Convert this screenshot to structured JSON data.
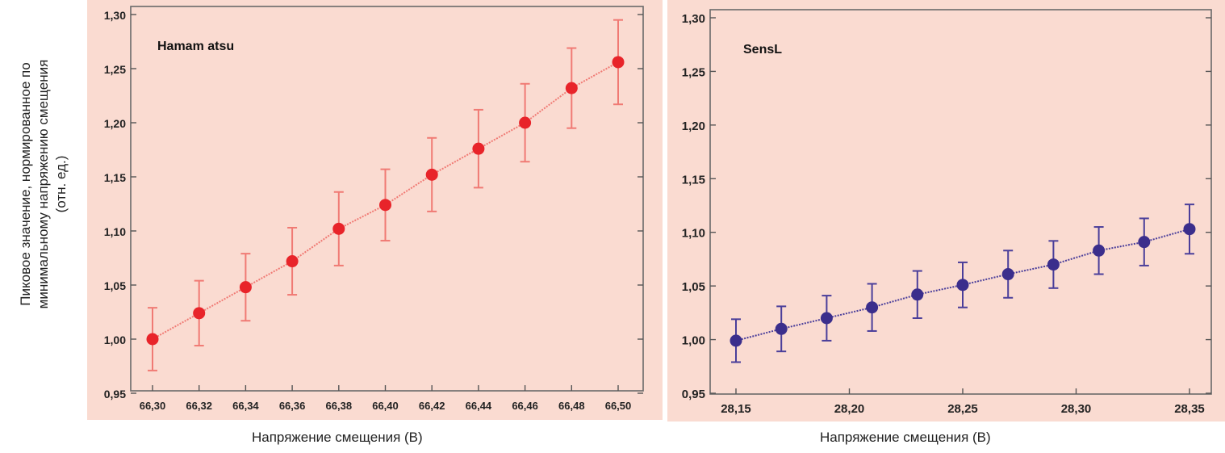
{
  "shared": {
    "ylabel_lines": [
      "Пиковое значение, нормированное по",
      "минимальному напряжению смещения",
      "(отн. ед.)"
    ]
  },
  "chart_data": [
    {
      "type": "scatter",
      "title": "",
      "annotation": "Hamam atsu",
      "xlabel": "Напряжение смещения (В)",
      "ylabel": "Пиковое значение, нормированное по минимальному напряжению смещения (отн. ед.)",
      "xlim": [
        66.3,
        66.5
      ],
      "ylim": [
        0.95,
        1.3
      ],
      "x_ticks": [
        "66,30",
        "66,32",
        "66,34",
        "66,36",
        "66,38",
        "66,40",
        "66,42",
        "66,44",
        "66,46",
        "66,48",
        "66,50"
      ],
      "y_ticks": [
        "0,95",
        "1,00",
        "1,05",
        "1,10",
        "1,15",
        "1,20",
        "1,25",
        "1,30"
      ],
      "grid": false,
      "background_color": "#fadbd1",
      "series": [
        {
          "color": "#e8242a",
          "errorbar_color": "#f07a74",
          "x": [
            66.3,
            66.32,
            66.34,
            66.36,
            66.38,
            66.4,
            66.42,
            66.44,
            66.46,
            66.48,
            66.5
          ],
          "y": [
            1.0,
            1.024,
            1.048,
            1.072,
            1.102,
            1.124,
            1.152,
            1.176,
            1.2,
            1.232,
            1.256
          ],
          "y_err": [
            0.029,
            0.03,
            0.031,
            0.031,
            0.034,
            0.033,
            0.034,
            0.036,
            0.036,
            0.037,
            0.039
          ]
        }
      ]
    },
    {
      "type": "scatter",
      "title": "",
      "annotation": "SensL",
      "xlabel": "Напряжение смещения (В)",
      "ylabel": "Пиковое значение, нормированное по минимальному напряжению смещения (отн. ед.)",
      "xlim": [
        28.15,
        28.35
      ],
      "ylim": [
        0.95,
        1.3
      ],
      "x_ticks": [
        "28,15",
        "28,20",
        "28,25",
        "28,30",
        "28,35"
      ],
      "y_ticks": [
        "0,95",
        "1,00",
        "1,05",
        "1,10",
        "1,15",
        "1,20",
        "1,25",
        "1,30"
      ],
      "grid": false,
      "background_color": "#fadbd1",
      "series": [
        {
          "color": "#3b2e8c",
          "errorbar_color": "#4a3e9a",
          "x": [
            28.15,
            28.17,
            28.19,
            28.21,
            28.23,
            28.25,
            28.27,
            28.29,
            28.31,
            28.33,
            28.35
          ],
          "y": [
            0.999,
            1.01,
            1.02,
            1.03,
            1.042,
            1.051,
            1.061,
            1.07,
            1.083,
            1.091,
            1.103
          ],
          "y_err": [
            0.02,
            0.021,
            0.021,
            0.022,
            0.022,
            0.021,
            0.022,
            0.022,
            0.022,
            0.022,
            0.023
          ]
        }
      ]
    }
  ]
}
